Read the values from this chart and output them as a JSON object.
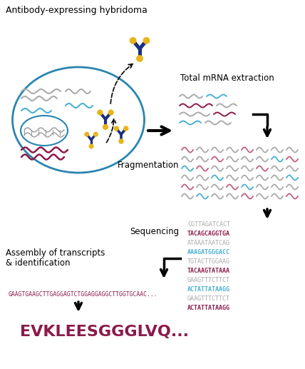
{
  "bg_color": "#ffffff",
  "label_antibody": "Antibody-expressing hybridoma",
  "label_mrna": "Total mRNA extraction",
  "label_frag": "Fragmentation",
  "label_seq": "Sequencing",
  "label_assembly_1": "Assembly of transcripts",
  "label_assembly_2": "& identification",
  "dna_seq": "GAAGTGAAGCTTGAGGAGTCTGGAGGAGGCTTGGTGCAAC...",
  "protein_seq": "EVKLEESGGGLVQ...",
  "seq_lines": [
    {
      "text": "CGTTAGATCACT",
      "color": "#aaaaaa",
      "bold": false
    },
    {
      "text": "TACAGCAGGTGA",
      "color": "#8b1a4a",
      "bold": true
    },
    {
      "text": "ATAAATAATCAG",
      "color": "#aaaaaa",
      "bold": false
    },
    {
      "text": "AAAGATGGGACC",
      "color": "#4ab0d4",
      "bold": true
    },
    {
      "text": "TGTACTTGGAAG",
      "color": "#aaaaaa",
      "bold": false
    },
    {
      "text": "TACAAGTATAAA",
      "color": "#8b1a4a",
      "bold": true
    },
    {
      "text": "GAAGTTTCTTCT",
      "color": "#aaaaaa",
      "bold": false
    },
    {
      "text": "ACTATTATAAGG",
      "color": "#4ab0d4",
      "bold": true
    },
    {
      "text": "GAAGTTTCTTCT",
      "color": "#aaaaaa",
      "bold": false
    },
    {
      "text": "ACTATTATAAGG",
      "color": "#8b1a4a",
      "bold": true
    }
  ],
  "dark_blue": "#1a3080",
  "gold": "#e8b41a",
  "teal": "#2a85b0",
  "pink": "#8b1a4a",
  "light_blue": "#4ab0d4",
  "gray": "#999999",
  "muted_pink": "#c06080",
  "muted_gray": "#aaaaaa",
  "frag_grid": [
    [
      1,
      0,
      0,
      0,
      0,
      1,
      0,
      0
    ],
    [
      0,
      0,
      1,
      0,
      0,
      0,
      1,
      0
    ],
    [
      0,
      1,
      0,
      0,
      1,
      0,
      0,
      0
    ],
    [
      0,
      0,
      0,
      1,
      0,
      0,
      0,
      1
    ],
    [
      1,
      0,
      0,
      0,
      0,
      1,
      0,
      0
    ],
    [
      0,
      0,
      1,
      0,
      0,
      0,
      0,
      1
    ]
  ],
  "frag_blue_grid": [
    [
      0,
      0,
      0,
      0,
      0,
      0,
      0,
      0
    ],
    [
      0,
      0,
      0,
      0,
      0,
      0,
      0,
      1
    ],
    [
      0,
      0,
      0,
      1,
      0,
      0,
      0,
      0
    ],
    [
      0,
      0,
      0,
      0,
      0,
      0,
      1,
      0
    ],
    [
      0,
      0,
      1,
      0,
      0,
      0,
      0,
      0
    ],
    [
      0,
      0,
      0,
      0,
      0,
      0,
      1,
      0
    ]
  ]
}
